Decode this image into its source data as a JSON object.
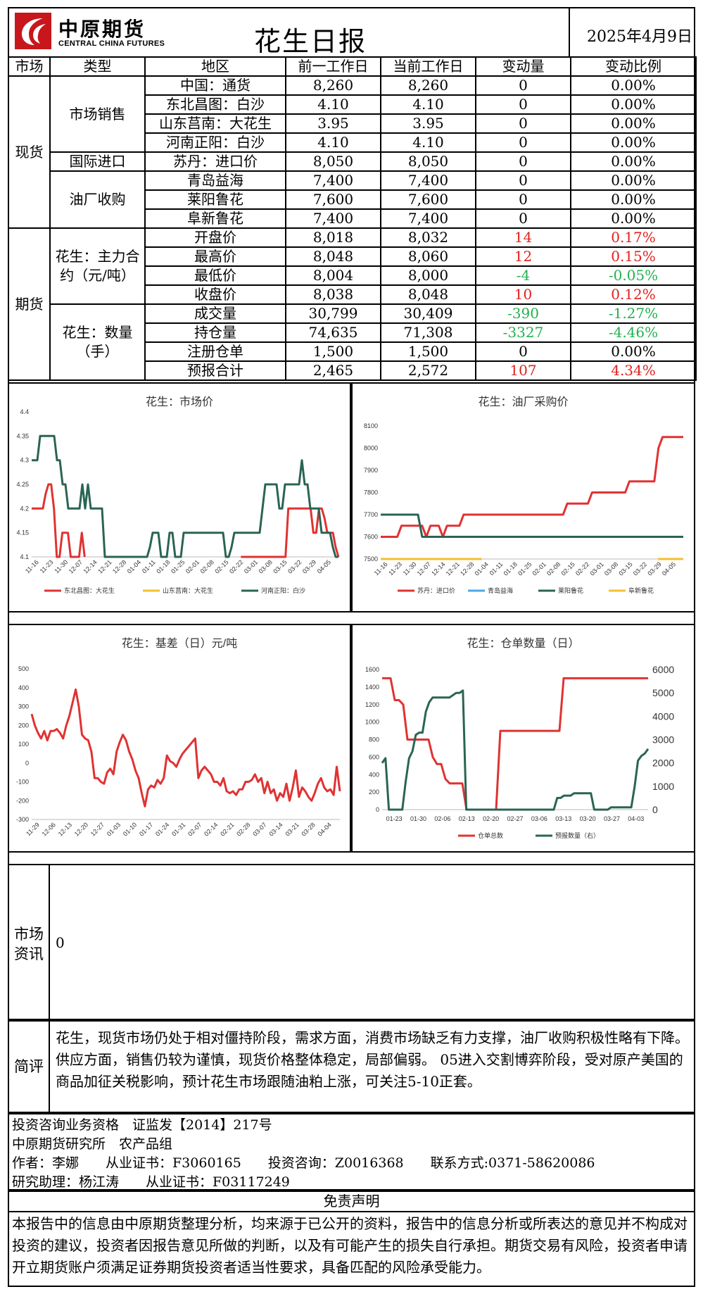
{
  "header": {
    "logo_cn": "中原期货",
    "logo_en": "CENTRAL CHINA FUTURES",
    "title": "花生日报",
    "date": "2025年4月9日"
  },
  "table": {
    "headers": [
      "市场",
      "类型",
      "地区",
      "前一工作日",
      "当前工作日",
      "变动量",
      "变动比例"
    ],
    "spot_label": "现货",
    "futures_label": "期货",
    "groups": {
      "market_sales": "市场销售",
      "intl_import": "国际进口",
      "oil_mill": "油厂收购",
      "main_contract": "花生：主力合约（元/吨）",
      "quantity": "花生：数量（手）"
    },
    "rows": [
      {
        "region": "中国：通货",
        "prev": "8,260",
        "curr": "8,260",
        "chg": "0",
        "pct": "0.00%",
        "dir": "flat"
      },
      {
        "region": "东北昌图：白沙",
        "prev": "4.10",
        "curr": "4.10",
        "chg": "0",
        "pct": "0.00%",
        "dir": "flat"
      },
      {
        "region": "山东莒南：大花生",
        "prev": "3.95",
        "curr": "3.95",
        "chg": "0",
        "pct": "0.00%",
        "dir": "flat"
      },
      {
        "region": "河南正阳：白沙",
        "prev": "4.10",
        "curr": "4.10",
        "chg": "0",
        "pct": "0.00%",
        "dir": "flat"
      },
      {
        "region": "苏丹：进口价",
        "prev": "8,050",
        "curr": "8,050",
        "chg": "0",
        "pct": "0.00%",
        "dir": "flat"
      },
      {
        "region": "青岛益海",
        "prev": "7,400",
        "curr": "7,400",
        "chg": "0",
        "pct": "0.00%",
        "dir": "flat"
      },
      {
        "region": "莱阳鲁花",
        "prev": "7,600",
        "curr": "7,600",
        "chg": "0",
        "pct": "0.00%",
        "dir": "flat"
      },
      {
        "region": "阜新鲁花",
        "prev": "7,400",
        "curr": "7,400",
        "chg": "0",
        "pct": "0.00%",
        "dir": "flat"
      },
      {
        "region": "开盘价",
        "prev": "8,018",
        "curr": "8,032",
        "chg": "14",
        "pct": "0.17%",
        "dir": "up"
      },
      {
        "region": "最高价",
        "prev": "8,048",
        "curr": "8,060",
        "chg": "12",
        "pct": "0.15%",
        "dir": "up"
      },
      {
        "region": "最低价",
        "prev": "8,004",
        "curr": "8,000",
        "chg": "-4",
        "pct": "-0.05%",
        "dir": "down"
      },
      {
        "region": "收盘价",
        "prev": "8,038",
        "curr": "8,048",
        "chg": "10",
        "pct": "0.12%",
        "dir": "up"
      },
      {
        "region": "成交量",
        "prev": "30,799",
        "curr": "30,409",
        "chg": "-390",
        "pct": "-1.27%",
        "dir": "down"
      },
      {
        "region": "持仓量",
        "prev": "74,635",
        "curr": "71,308",
        "chg": "-3327",
        "pct": "-4.46%",
        "dir": "down"
      },
      {
        "region": "注册仓单",
        "prev": "1,500",
        "curr": "1,500",
        "chg": "0",
        "pct": "0.00%",
        "dir": "flat"
      },
      {
        "region": "预报合计",
        "prev": "2,465",
        "curr": "2,572",
        "chg": "107",
        "pct": "4.34%",
        "dir": "up"
      }
    ]
  },
  "colors": {
    "up": "#e0211d",
    "down": "#21b14e",
    "red_line": "#e03232",
    "teal_line": "#2a6454",
    "yellow_line": "#f2c12e",
    "blue_line": "#4aa8e8"
  },
  "chart_data": [
    {
      "type": "line",
      "title": "花生：市场价",
      "x_ticks": [
        "11-16",
        "11-23",
        "11-30",
        "12-07",
        "12-14",
        "12-21",
        "12-28",
        "01-04",
        "01-11",
        "01-18",
        "01-25",
        "02-01",
        "02-08",
        "02-15",
        "02-22",
        "03-01",
        "03-08",
        "03-15",
        "03-22",
        "03-29",
        "04-05"
      ],
      "ylim": [
        4.1,
        4.4
      ],
      "y_ticks": [
        "4.1",
        "4.15",
        "4.2",
        "4.25",
        "4.3",
        "4.35",
        "4.4"
      ],
      "legend": "bottom",
      "series": [
        {
          "name": "东北昌图：大花生",
          "color": "#e03232",
          "values": [
            4.2,
            4.2,
            4.2,
            4.2,
            4.2,
            4.23,
            4.25,
            4.25,
            4.2,
            4.1,
            4.1,
            4.15,
            4.15,
            4.15,
            4.1,
            4.1,
            4.1,
            4.1,
            4.15,
            4.1,
            null,
            null,
            null,
            null,
            null,
            null,
            null,
            null,
            null,
            null,
            null,
            null,
            null,
            null,
            null,
            null,
            null,
            null,
            null,
            null,
            null,
            null,
            null,
            null,
            null,
            null,
            null,
            null,
            null,
            null,
            null,
            null,
            null,
            null,
            null,
            null,
            null,
            null,
            null,
            null,
            null,
            null,
            null,
            null,
            null,
            null,
            null,
            null,
            null,
            null,
            null,
            null,
            null,
            null,
            null,
            4.1,
            4.1,
            4.1,
            4.1,
            4.1,
            4.1,
            4.1,
            4.1,
            4.1,
            4.1,
            4.1,
            4.1,
            4.1,
            4.1,
            4.1,
            4.1,
            4.1,
            4.2,
            4.2,
            4.2,
            4.2,
            4.2,
            4.2,
            4.2,
            4.2,
            4.2,
            4.15,
            4.15,
            4.2,
            4.2,
            4.18,
            4.15,
            4.15,
            4.15,
            4.12,
            4.1
          ]
        },
        {
          "name": "山东莒南：大花生",
          "color": "#f2c12e",
          "values": []
        },
        {
          "name": "河南正阳：白沙",
          "color": "#2a6454",
          "values": [
            4.3,
            4.3,
            4.3,
            4.35,
            4.35,
            4.35,
            4.35,
            4.35,
            4.35,
            4.3,
            4.3,
            4.25,
            4.25,
            4.2,
            4.2,
            4.2,
            4.2,
            4.2,
            4.25,
            4.2,
            4.25,
            4.2,
            4.2,
            4.2,
            4.2,
            4.2,
            4.1,
            4.1,
            4.1,
            4.1,
            4.1,
            4.1,
            4.1,
            4.1,
            4.1,
            4.1,
            4.1,
            4.1,
            4.1,
            4.1,
            4.1,
            4.1,
            4.12,
            4.15,
            4.15,
            4.15,
            4.1,
            4.1,
            4.1,
            4.15,
            4.15,
            4.1,
            4.1,
            4.1,
            4.15,
            4.15,
            4.15,
            4.15,
            4.15,
            4.15,
            4.15,
            4.15,
            4.15,
            4.15,
            4.15,
            4.15,
            4.15,
            4.15,
            4.15,
            4.1,
            4.1,
            4.12,
            4.15,
            4.15,
            4.15,
            4.15,
            4.15,
            4.15,
            4.15,
            4.15,
            4.15,
            4.15,
            4.2,
            4.25,
            4.25,
            4.25,
            4.25,
            4.25,
            4.2,
            4.2,
            4.25,
            4.25,
            4.25,
            4.25,
            4.25,
            4.25,
            4.3,
            4.25,
            4.25,
            4.2,
            4.2,
            4.2,
            4.2,
            4.15,
            4.15,
            4.15,
            4.15,
            4.12,
            4.1,
            4.1
          ]
        }
      ]
    },
    {
      "type": "line",
      "title": "花生：油厂采购价",
      "x_ticks": [
        "11-16",
        "11-23",
        "11-30",
        "12-07",
        "12-14",
        "12-21",
        "12-28",
        "01-04",
        "01-11",
        "01-18",
        "01-25",
        "02-01",
        "02-08",
        "02-15",
        "02-22",
        "03-01",
        "03-08",
        "03-15",
        "03-22",
        "03-29",
        "04-05"
      ],
      "ylim": [
        7500,
        8100
      ],
      "y_ticks": [
        "7500",
        "7600",
        "7700",
        "7800",
        "7900",
        "8000",
        "8100"
      ],
      "legend": "bottom",
      "series": [
        {
          "name": "苏丹：进口价",
          "color": "#e03232",
          "values": [
            7600,
            7600,
            7600,
            7600,
            7600,
            7650,
            7650,
            7650,
            7650,
            7650,
            7650,
            7600,
            7650,
            7650,
            7650,
            7600,
            7650,
            7650,
            7650,
            7650,
            7700,
            7700,
            7700,
            7700,
            7700,
            7700,
            7700,
            7700,
            7700,
            7700,
            7700,
            7700,
            7700,
            7700,
            7700,
            7700,
            7700,
            7700,
            7700,
            7700,
            7700,
            7700,
            7700,
            7700,
            7700,
            7750,
            7750,
            7750,
            7750,
            7750,
            7750,
            7800,
            7800,
            7800,
            7800,
            7800,
            7800,
            7800,
            7800,
            7800,
            7850,
            7850,
            7850,
            7850,
            7850,
            7850,
            7850,
            8000,
            8050,
            8050,
            8050,
            8050,
            8050,
            8050
          ]
        },
        {
          "name": "青岛益海",
          "color": "#4aa8e8",
          "values": []
        },
        {
          "name": "莱阳鲁花",
          "color": "#2a6454",
          "values": [
            7700,
            7700,
            7700,
            7700,
            7700,
            7700,
            7700,
            7700,
            7700,
            7700,
            7600,
            7600,
            7600,
            7600,
            7600,
            7600,
            7600,
            7600,
            7600,
            7600,
            7600,
            7600,
            7600,
            7600,
            7600,
            7600,
            7600,
            7600,
            7600,
            7600,
            7600,
            7600,
            7600,
            7600,
            7600,
            7600,
            7600,
            7600,
            7600,
            7600,
            7600,
            7600,
            7600,
            7600,
            7600,
            7600,
            7600,
            7600,
            7600,
            7600,
            7600,
            7600,
            7600,
            7600,
            7600,
            7600,
            7600,
            7600,
            7600,
            7600,
            7600,
            7600,
            7600,
            7600,
            7600,
            7600,
            7600,
            7600,
            7600,
            7600,
            7600,
            7600,
            7600,
            7600
          ]
        },
        {
          "name": "阜新鲁花",
          "color": "#f2c12e",
          "values": [
            7500,
            7500,
            7500,
            7500,
            7500,
            7500,
            7500,
            7500,
            7500,
            null,
            null,
            null,
            null,
            null,
            null,
            null,
            null,
            null,
            null,
            null,
            null,
            null,
            7500,
            7500,
            7500
          ]
        }
      ]
    },
    {
      "type": "line",
      "title": "花生：基差（日）元/吨",
      "x_ticks": [
        "11-29",
        "12-06",
        "12-13",
        "12-20",
        "12-27",
        "01-03",
        "01-10",
        "01-17",
        "01-24",
        "01-31",
        "02-07",
        "02-14",
        "02-21",
        "02-28",
        "03-07",
        "03-14",
        "03-21",
        "03-28",
        "04-04"
      ],
      "ylim": [
        -300,
        500
      ],
      "y_ticks": [
        "-300",
        "-200",
        "-100",
        "0",
        "100",
        "200",
        "300",
        "400",
        "500"
      ],
      "series": [
        {
          "name": "基差",
          "color": "#e03232",
          "values": [
            260,
            200,
            160,
            130,
            170,
            120,
            170,
            170,
            180,
            160,
            130,
            200,
            250,
            320,
            390,
            300,
            150,
            130,
            120,
            60,
            -80,
            -80,
            -100,
            -110,
            -50,
            -30,
            -60,
            60,
            110,
            150,
            120,
            60,
            20,
            -40,
            -80,
            -160,
            -230,
            -140,
            -120,
            -130,
            -90,
            -110,
            -80,
            40,
            10,
            0,
            -20,
            20,
            50,
            70,
            90,
            110,
            130,
            -80,
            -40,
            -20,
            -40,
            -60,
            -100,
            -100,
            -120,
            -80,
            -150,
            -160,
            -150,
            -170,
            -140,
            -140,
            -100,
            -100,
            -90,
            -60,
            -100,
            -80,
            -160,
            -100,
            -160,
            -140,
            -200,
            -160,
            -180,
            -110,
            -200,
            -130,
            -40,
            -180,
            -130,
            -150,
            -180,
            -200,
            -160,
            -110,
            -80,
            -130,
            -150,
            -140,
            -170,
            -20,
            -150
          ]
        }
      ]
    },
    {
      "type": "line",
      "title": "花生：仓单数量（日）",
      "x_ticks": [
        "01-23",
        "01-30",
        "02-06",
        "02-13",
        "02-20",
        "02-27",
        "03-06",
        "03-13",
        "03-20",
        "03-27",
        "04-03"
      ],
      "ylim": [
        0,
        1600
      ],
      "y_ticks": [
        "0",
        "200",
        "400",
        "600",
        "800",
        "1000",
        "1200",
        "1400",
        "1600"
      ],
      "y2lim": [
        0,
        6000
      ],
      "y2_ticks": [
        "0",
        "1000",
        "2000",
        "3000",
        "4000",
        "5000",
        "6000"
      ],
      "legend": "bottom",
      "series": [
        {
          "name": "仓单总数",
          "color": "#e03232",
          "axis": "left",
          "values": [
            1500,
            1500,
            1500,
            1250,
            1250,
            1200,
            800,
            800,
            800,
            800,
            800,
            800,
            600,
            520,
            520,
            350,
            300,
            300,
            300,
            300,
            0,
            0,
            0,
            0,
            0,
            0,
            0,
            0,
            900,
            900,
            900,
            900,
            900,
            900,
            900,
            900,
            900,
            900,
            900,
            900,
            900,
            900,
            900,
            1500,
            1500,
            1500,
            1500,
            1500,
            1500,
            1500,
            1500,
            1500,
            1500,
            1500,
            1500,
            1500,
            1500,
            1500,
            1500,
            1500,
            1500,
            1500,
            1500,
            1500
          ]
        },
        {
          "name": "预报数量（右）",
          "color": "#2a6454",
          "axis": "right",
          "values": [
            2000,
            2200,
            0,
            0,
            0,
            0,
            0,
            1200,
            2200,
            2500,
            3200,
            3300,
            3300,
            4200,
            4600,
            4800,
            4800,
            4800,
            4800,
            4800,
            4800,
            4900,
            5000,
            5000,
            5100,
            0,
            0,
            0,
            0,
            0,
            0,
            0,
            0,
            0,
            0,
            0,
            0,
            0,
            0,
            0,
            0,
            0,
            0,
            0,
            0,
            0,
            0,
            0,
            0,
            0,
            0,
            0,
            500,
            500,
            600,
            600,
            600,
            700,
            700,
            700,
            700,
            700,
            700,
            0,
            0,
            0,
            0,
            0,
            100,
            100,
            100,
            100,
            100,
            100,
            100,
            1000,
            2100,
            2300,
            2400,
            2600
          ]
        }
      ]
    }
  ],
  "market_info": {
    "label": "市场资讯",
    "content": "0"
  },
  "comment": {
    "label": "简评",
    "content": "花生，现货市场仍处于相对僵持阶段，需求方面，消费市场缺乏有力支撑，油厂收购积极性略有下降。供应方面，销售仍较为谨慎，现货价格整体稳定，局部偏弱。 05进入交割博弈阶段，受对原产美国的商品加征关税影响，预计花生市场跟随油粕上涨，可关注5-10正套。"
  },
  "footer": {
    "line1": "投资咨询业务资格　证监发【2014】217号",
    "line2": "中原期货研究所　农产品组",
    "line3": "作者：李娜　　从业证书：F3060165　　投资咨询：Z0016368　　联系方式:0371-58620086",
    "line4": "研究助理：杨江涛　　从业证书：F03117249",
    "disclaimer_title": "免责声明",
    "disclaimer": "本报告中的信息由中原期货整理分析，均来源于已公开的资料，报告中的信息分析或所表达的意见并不构成对投资的建议，投资者因报告意见所做的判断，以及有可能产生的损失自行承担。期货交易有风险，投资者申请开立期货账户须满足证券期货投资者适当性要求，具备匹配的风险承受能力。"
  }
}
